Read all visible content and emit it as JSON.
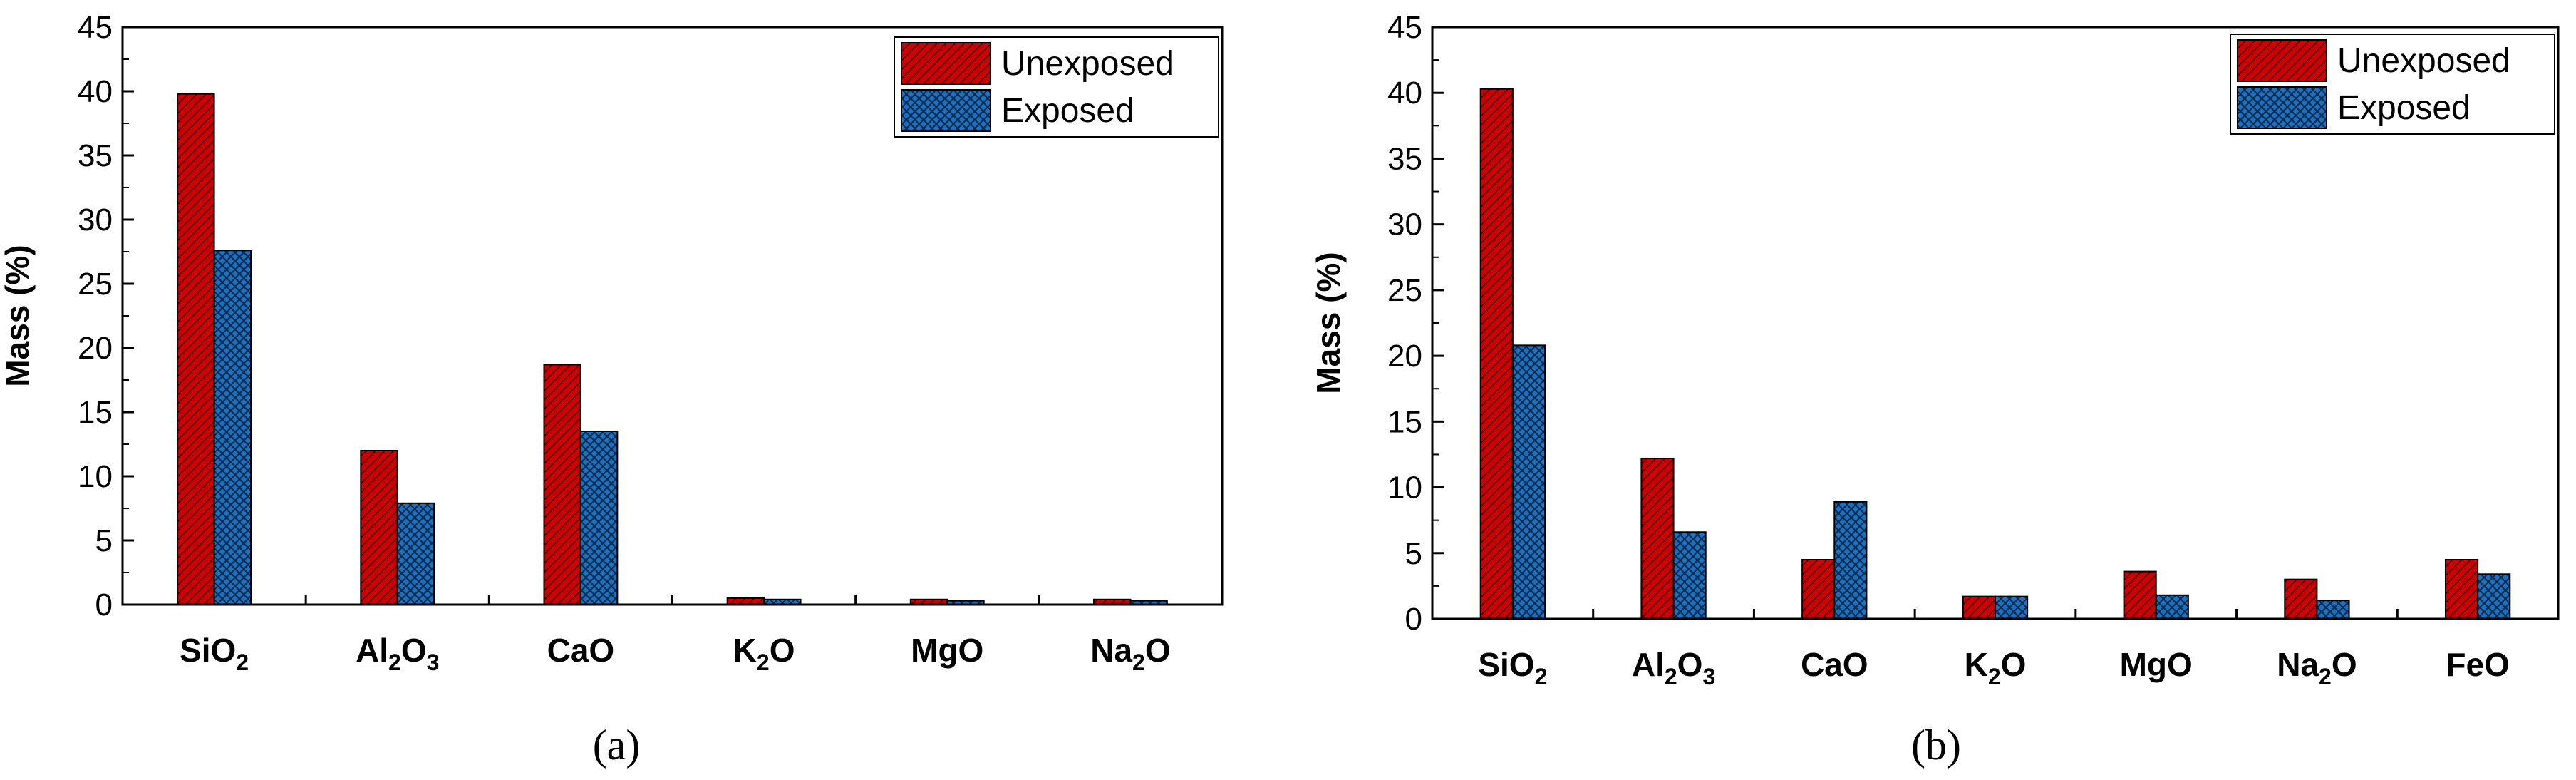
{
  "figure": {
    "panels": [
      {
        "caption": "(a)"
      },
      {
        "caption": "(b)"
      }
    ]
  },
  "colors": {
    "unexposed": "#cc0000",
    "exposed": "#1f6fbf",
    "axis": "#000000"
  },
  "chart_data": [
    {
      "type": "bar",
      "categories": [
        {
          "base": "SiO",
          "sub": "2",
          "tail": ""
        },
        {
          "base": "Al",
          "sub": "2",
          "tail": "O",
          "sub2": "3"
        },
        {
          "base": "CaO",
          "sub": "",
          "tail": ""
        },
        {
          "base": "K",
          "sub": "2",
          "tail": "O"
        },
        {
          "base": "MgO",
          "sub": "",
          "tail": ""
        },
        {
          "base": "Na",
          "sub": "2",
          "tail": "O"
        }
      ],
      "series": [
        {
          "name": "Unexposed",
          "values": [
            39.8,
            12.0,
            18.7,
            0.5,
            0.4,
            0.4
          ]
        },
        {
          "name": "Exposed",
          "values": [
            27.6,
            7.9,
            13.5,
            0.4,
            0.3,
            0.3
          ]
        }
      ],
      "xlabel": "",
      "ylabel": "Mass (%)",
      "ylim": [
        0,
        45
      ],
      "yticks": [
        0,
        5,
        10,
        15,
        20,
        25,
        30,
        35,
        40,
        45
      ],
      "legend": "top-right",
      "grid": false
    },
    {
      "type": "bar",
      "categories": [
        {
          "base": "SiO",
          "sub": "2",
          "tail": ""
        },
        {
          "base": "Al",
          "sub": "2",
          "tail": "O",
          "sub2": "3"
        },
        {
          "base": "CaO",
          "sub": "",
          "tail": ""
        },
        {
          "base": "K",
          "sub": "2",
          "tail": "O"
        },
        {
          "base": "MgO",
          "sub": "",
          "tail": ""
        },
        {
          "base": "Na",
          "sub": "2",
          "tail": "O"
        },
        {
          "base": "FeO",
          "sub": "",
          "tail": ""
        }
      ],
      "series": [
        {
          "name": "Unexposed",
          "values": [
            40.3,
            12.2,
            4.5,
            1.7,
            3.6,
            3.0,
            4.5
          ]
        },
        {
          "name": "Exposed",
          "values": [
            20.8,
            6.6,
            8.9,
            1.7,
            1.8,
            1.4,
            3.4
          ]
        }
      ],
      "xlabel": "",
      "ylabel": "Mass (%)",
      "ylim": [
        0,
        45
      ],
      "yticks": [
        0,
        5,
        10,
        15,
        20,
        25,
        30,
        35,
        40,
        45
      ],
      "legend": "top-right",
      "grid": false
    }
  ]
}
